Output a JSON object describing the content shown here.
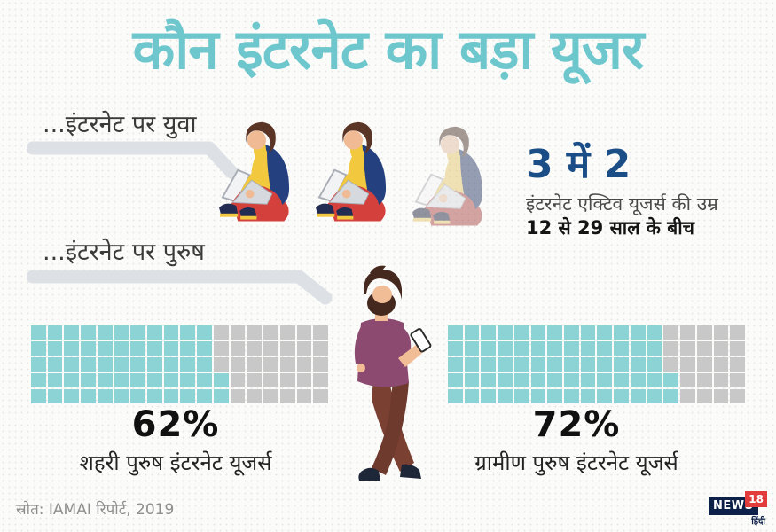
{
  "title": "कौन इंटरनेट का बड़ा यूजर",
  "youth_section": {
    "label": "...इंटरनेट पर युवा",
    "stat_headline": "3 में 2",
    "stat_line1": "इंटरनेट एक्टिव यूजर्स की उम्र",
    "stat_line2": "12 से 29 साल के बीच"
  },
  "men_section": {
    "label": "...इंटरनेट पर पुरुष",
    "urban_percent": "62%",
    "urban_label": "शहरी पुरुष इंटरनेट यूजर्स",
    "rural_percent": "72%",
    "rural_label": "ग्रामीण पुरुष इंटरनेट यूजर्स"
  },
  "source": "स्रोत: IAMAI रिपोर्ट, 2019",
  "logo": {
    "news": "NEWS",
    "number": "18",
    "lang": "हिंदी"
  },
  "colors": {
    "title_teal": "#6fc7ce",
    "waffle_filled": "#8bd3d4",
    "waffle_empty": "#c8c8c8",
    "stat_navy": "#1b4d86",
    "swoosh_gray": "#dde1e6",
    "logo_navy": "#0d2048",
    "logo_red": "#e23b3c"
  },
  "chart_data": [
    {
      "type": "waffle",
      "title": "शहरी पुरुष इंटरनेट यूजर्स",
      "value_percent": 62,
      "rows": 5,
      "columns": 18,
      "filled_per_row": [
        11,
        11,
        11,
        12,
        12
      ],
      "filled_color": "#8bd3d4",
      "empty_color": "#c8c8c8"
    },
    {
      "type": "waffle",
      "title": "ग्रामीण पुरुष इंटरनेट यूजर्स",
      "value_percent": 72,
      "rows": 5,
      "columns": 18,
      "filled_per_row": [
        13,
        13,
        13,
        14,
        14
      ],
      "filled_color": "#8bd3d4",
      "empty_color": "#c8c8c8"
    },
    {
      "type": "pictogram",
      "title": "3 में 2 इंटरनेट एक्टिव यूजर्स की उम्र 12 से 29 साल के बीच",
      "total_figures": 3,
      "highlighted_figures": 2
    }
  ]
}
